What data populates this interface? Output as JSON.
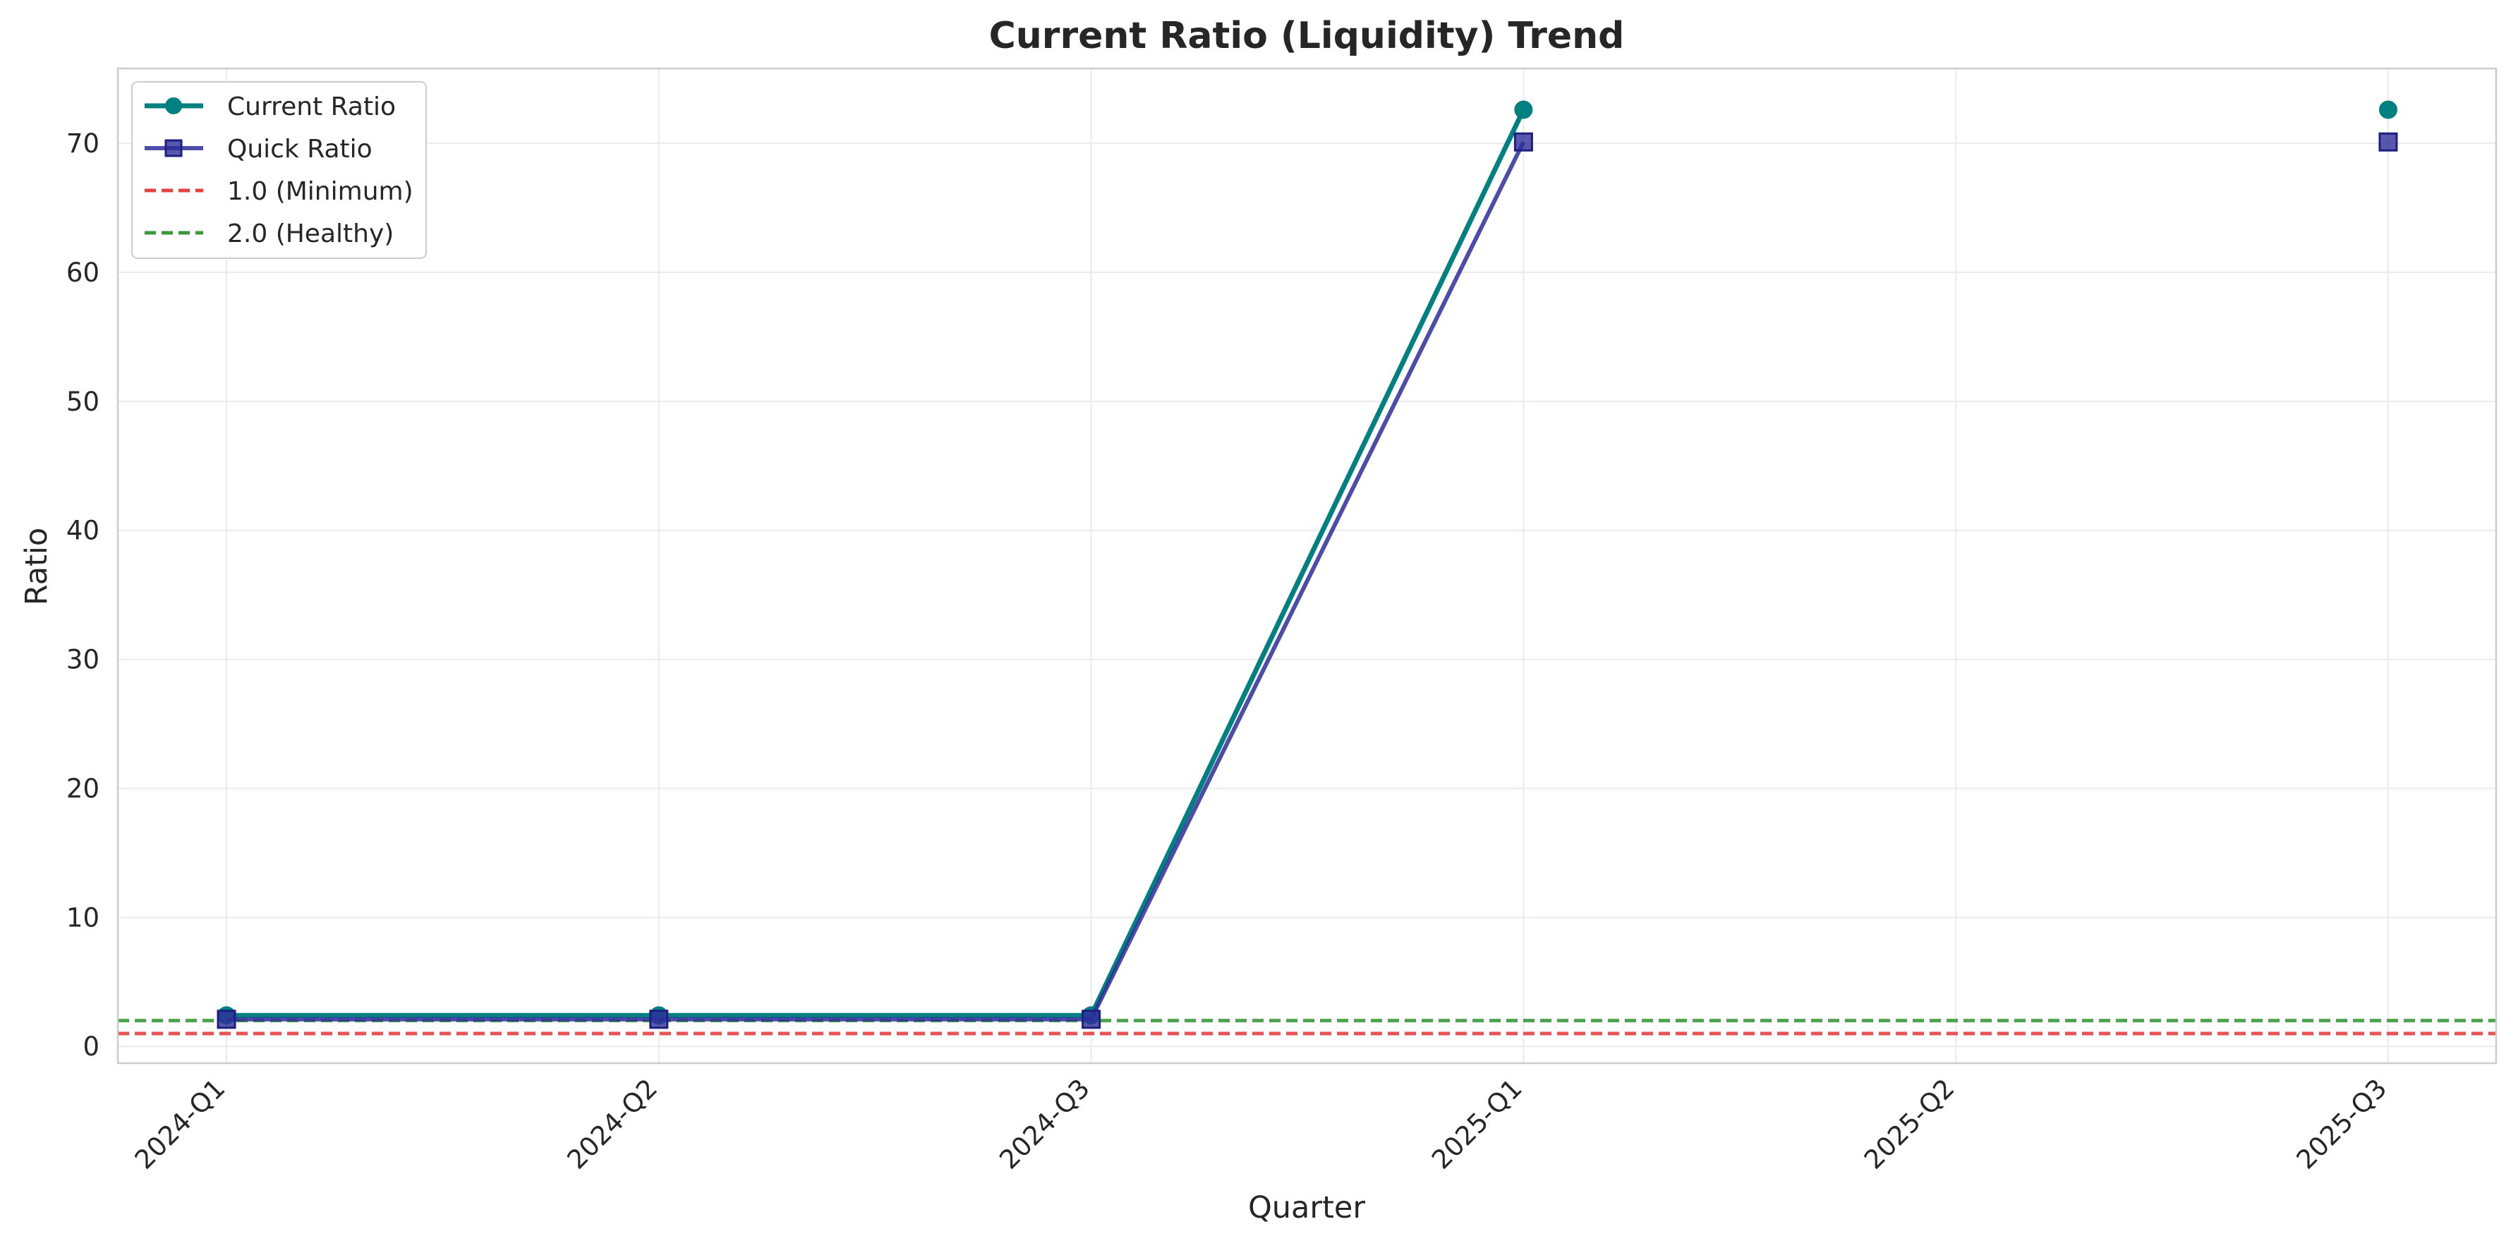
{
  "chart_data": {
    "type": "line",
    "title": "Current Ratio (Liquidity) Trend",
    "xlabel": "Quarter",
    "ylabel": "Ratio",
    "categories": [
      "2024-Q1",
      "2024-Q2",
      "2024-Q3",
      "2025-Q1",
      "2025-Q2",
      "2025-Q3"
    ],
    "ylim": [
      -1.3,
      75.8
    ],
    "yticks": [
      0,
      10,
      20,
      30,
      40,
      50,
      60,
      70
    ],
    "grid": true,
    "legend_position": "top-left",
    "series": [
      {
        "name": "Current Ratio",
        "values": [
          2.4,
          2.4,
          2.4,
          72.6,
          null,
          72.6
        ],
        "color": "#008080",
        "marker": "circle"
      },
      {
        "name": "Quick Ratio",
        "values": [
          2.1,
          2.1,
          2.1,
          70.1,
          null,
          70.1
        ],
        "color": "#2e2e9a",
        "marker": "square"
      }
    ],
    "reference_lines": [
      {
        "name": "1.0 (Minimum)",
        "value": 1.0,
        "color": "#e8403f",
        "style": "dashed"
      },
      {
        "name": "2.0 (Healthy)",
        "value": 2.0,
        "color": "#3a9a3a",
        "style": "dashed"
      }
    ]
  }
}
